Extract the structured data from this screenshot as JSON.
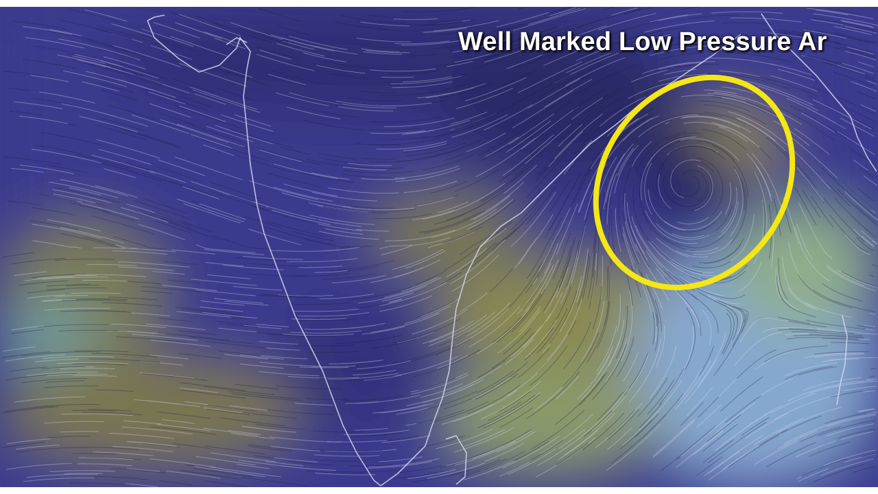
{
  "title": "Well Marked Low Pressure Ar",
  "colors": {
    "background": "#3a3a8c",
    "dark_core": "#25255e",
    "moderate_wind": "#8a8a4a",
    "strong_wind": "#8fb0d8",
    "annotation": "#f5e616",
    "coastline": "#d8d8f0"
  },
  "annotation_shape": "yellow-ellipse"
}
